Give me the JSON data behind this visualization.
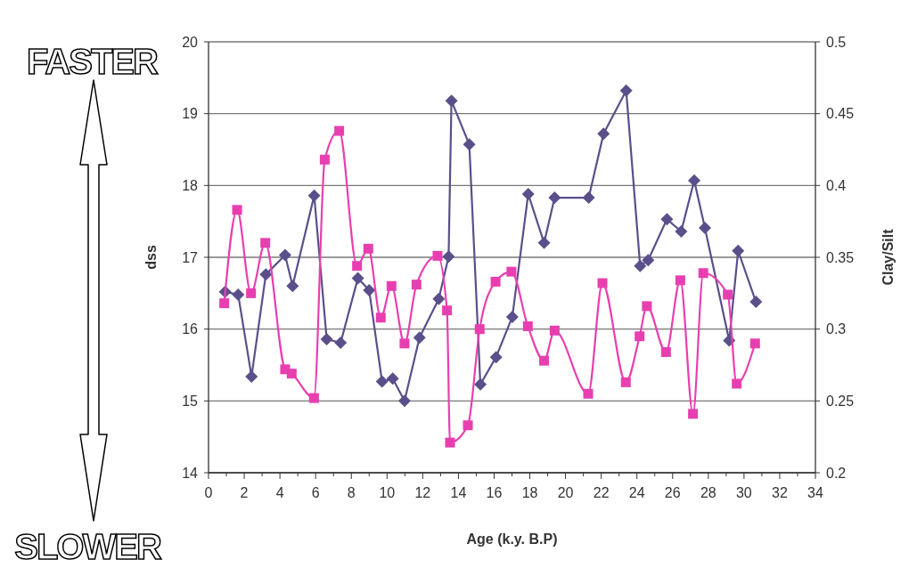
{
  "chart_data": {
    "type": "line",
    "xlabel": "Age (k.y. B.P)",
    "ylabel": "dss",
    "y2label": "Clay/Silt",
    "xlim": [
      0,
      34
    ],
    "xticks": [
      0,
      {
        "value": 1,
        "label": null
      },
      2,
      {
        "value": 3,
        "label": null
      },
      4,
      {
        "value": 5,
        "label": null
      },
      6,
      {
        "value": 7,
        "label": null
      },
      8,
      {
        "value": 9,
        "label": null
      },
      10,
      {
        "value": 11,
        "label": null
      },
      12,
      {
        "value": 13,
        "label": null
      },
      14,
      {
        "value": 15,
        "label": null
      },
      16,
      {
        "value": 17,
        "label": null
      },
      18,
      {
        "value": 19,
        "label": null
      },
      20,
      {
        "value": 21,
        "label": null
      },
      22,
      {
        "value": 23,
        "label": null
      },
      24,
      {
        "value": 25,
        "label": null
      },
      26,
      {
        "value": 27,
        "label": null
      },
      28,
      {
        "value": 29,
        "label": null
      },
      30,
      {
        "value": 31,
        "label": null
      },
      32,
      {
        "value": 33,
        "label": null
      },
      34
    ],
    "ylim": [
      14,
      20
    ],
    "yticks": [
      14,
      15,
      16,
      17,
      18,
      19,
      20
    ],
    "y2lim": [
      0.2,
      0.5
    ],
    "y2ticks": [
      0.2,
      0.25,
      0.3,
      0.35,
      0.4,
      0.45,
      0.5
    ],
    "grid": "y",
    "annotations": [
      "FASTER",
      "SLOWER"
    ],
    "series": [
      {
        "color": "#5a4f8a",
        "marker": "diamond",
        "line_style": "solid",
        "x": [
          0.93,
          1.66,
          2.41,
          3.21,
          4.29,
          4.71,
          5.92,
          6.62,
          7.4,
          8.37,
          9.0,
          9.72,
          10.32,
          10.98,
          11.82,
          12.9,
          13.45,
          13.61,
          14.61,
          15.23,
          16.11,
          17.02,
          17.91,
          18.8,
          19.39,
          21.3,
          22.13,
          23.4,
          24.18,
          24.63,
          25.68,
          26.48,
          27.21,
          27.81,
          29.17,
          29.67,
          30.67
        ],
        "values": [
          16.52,
          16.48,
          15.34,
          16.76,
          17.03,
          16.6,
          17.86,
          15.86,
          15.81,
          16.71,
          16.54,
          15.27,
          15.31,
          15.0,
          15.88,
          16.42,
          17.01,
          19.18,
          18.57,
          15.23,
          15.61,
          16.17,
          17.88,
          17.2,
          17.83,
          17.83,
          18.72,
          19.32,
          16.88,
          16.96,
          17.53,
          17.36,
          18.07,
          17.41,
          15.84,
          17.09,
          16.38
        ]
      },
      {
        "color": "#e83fb0",
        "marker": "square",
        "line_style": "solid",
        "axis": "y2",
        "x": [
          0.88,
          1.6,
          2.38,
          3.18,
          4.29,
          4.66,
          5.91,
          6.51,
          7.32,
          8.32,
          8.95,
          9.65,
          10.25,
          10.98,
          11.65,
          12.83,
          13.36,
          13.53,
          14.53,
          15.19,
          16.08,
          16.97,
          17.89,
          18.8,
          19.39,
          21.27,
          22.07,
          23.38,
          24.15,
          24.56,
          25.63,
          26.43,
          27.14,
          27.72,
          29.09,
          29.59,
          30.62
        ],
        "values": [
          0.318,
          0.383,
          0.325,
          0.36,
          0.272,
          0.269,
          0.252,
          0.418,
          0.438,
          0.344,
          0.356,
          0.308,
          0.33,
          0.29,
          0.331,
          0.351,
          0.313,
          0.221,
          0.233,
          0.3,
          0.333,
          0.34,
          0.302,
          0.278,
          0.299,
          0.255,
          0.332,
          0.263,
          0.295,
          0.316,
          0.284,
          0.334,
          0.241,
          0.339,
          0.324,
          0.262,
          0.29
        ]
      }
    ]
  }
}
